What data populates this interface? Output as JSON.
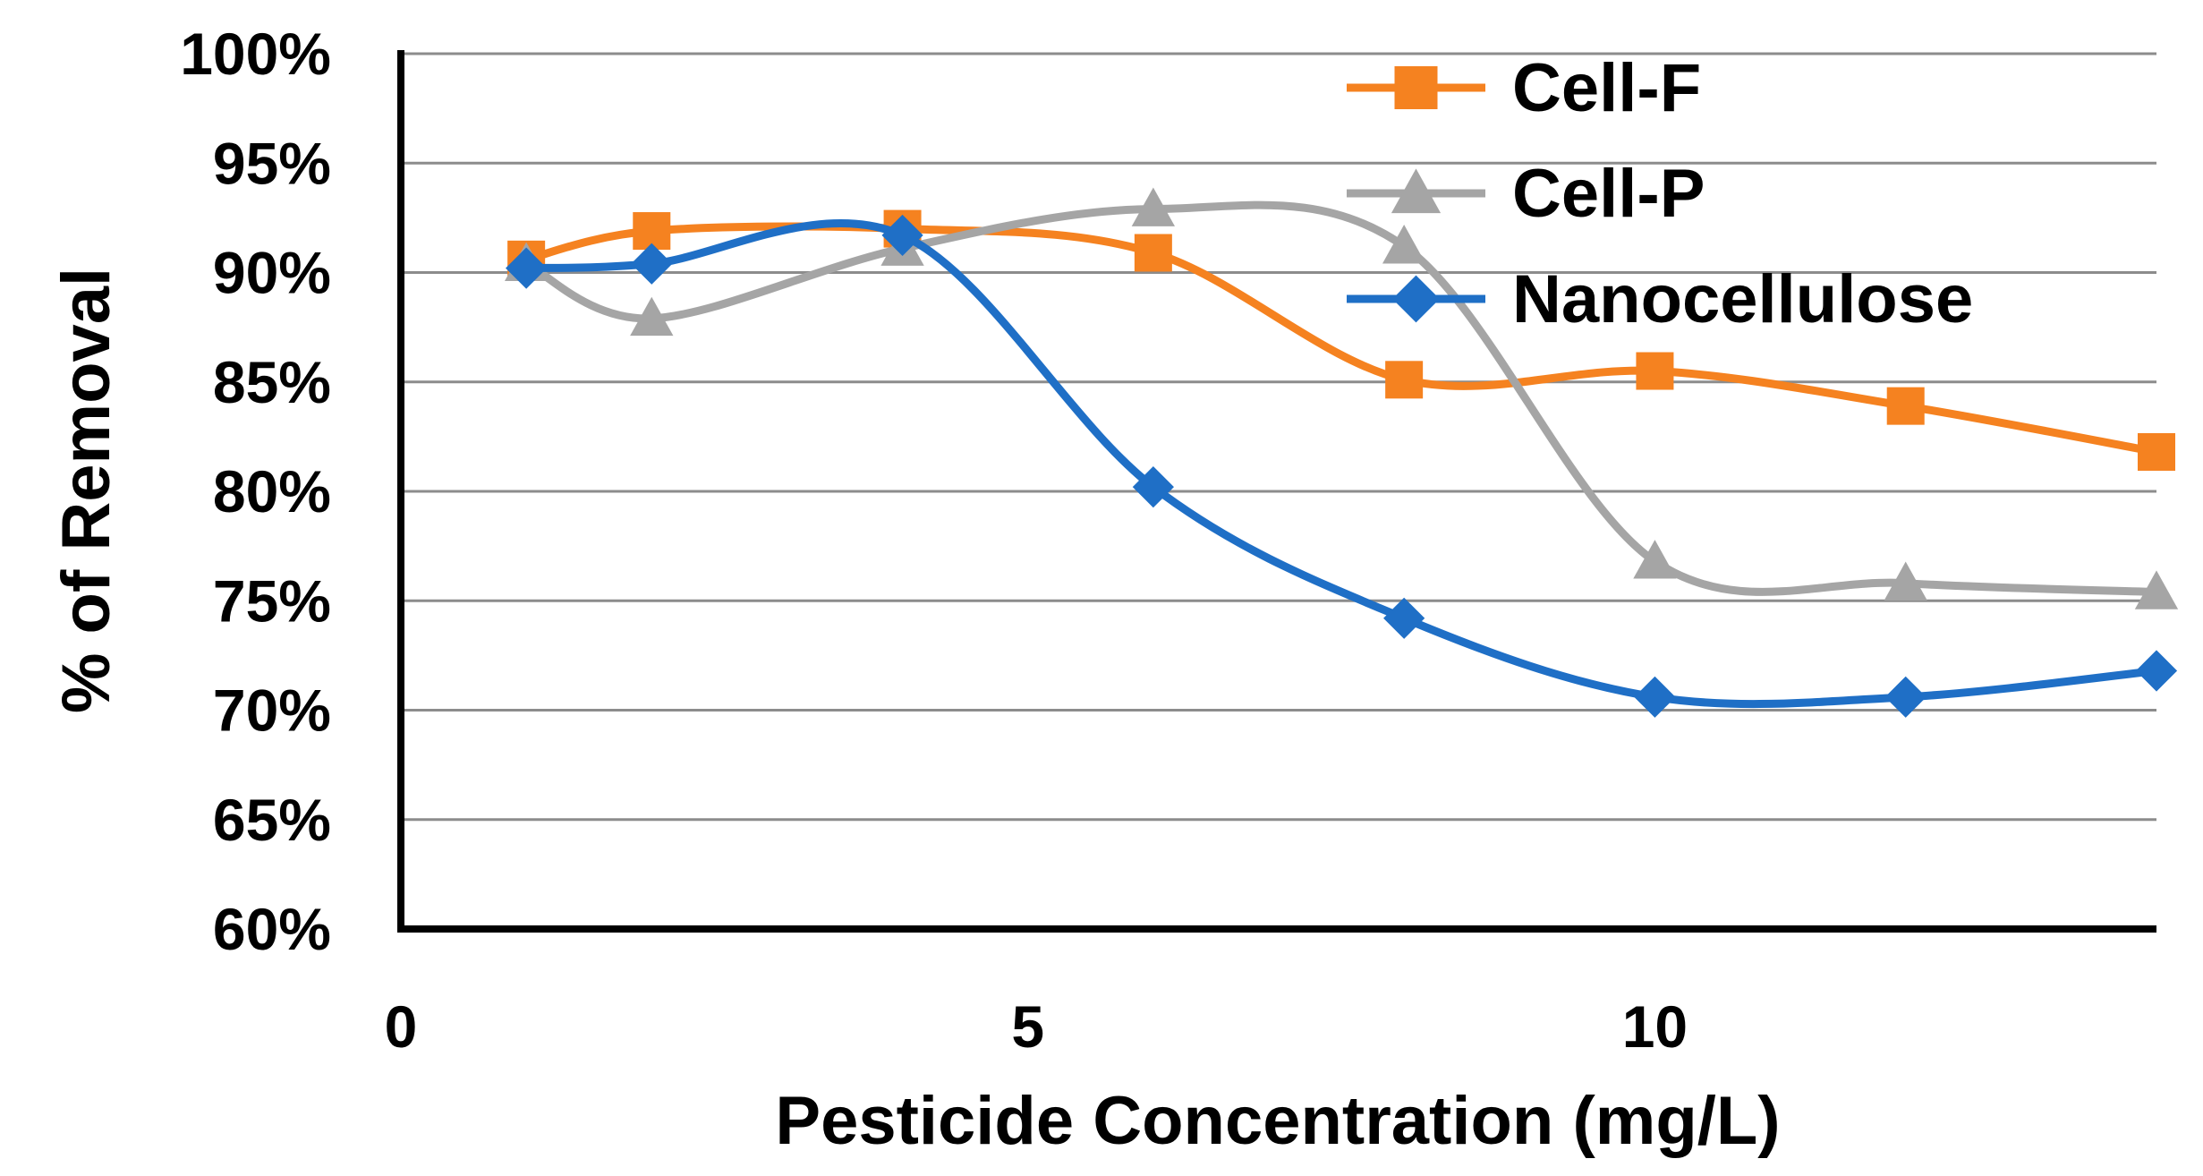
{
  "chart_data": {
    "type": "line",
    "title": "",
    "xlabel": "Pesticide Concentration (mg/L)",
    "ylabel": "% of Removal",
    "xlim": [
      0,
      14
    ],
    "ylim": [
      60,
      100
    ],
    "x_ticks": [
      {
        "value": 0,
        "label": "0"
      },
      {
        "value": 5,
        "label": "5"
      },
      {
        "value": 10,
        "label": "10"
      }
    ],
    "y_ticks": [
      {
        "value": 60,
        "label": "60%"
      },
      {
        "value": 65,
        "label": "65%"
      },
      {
        "value": 70,
        "label": "70%"
      },
      {
        "value": 75,
        "label": "75%"
      },
      {
        "value": 80,
        "label": "80%"
      },
      {
        "value": 85,
        "label": "85%"
      },
      {
        "value": 90,
        "label": "90%"
      },
      {
        "value": 95,
        "label": "95%"
      },
      {
        "value": 100,
        "label": "100%"
      }
    ],
    "grid": "horizontal",
    "smooth": true,
    "legend_position": "top-right",
    "x": [
      1,
      2,
      4,
      6,
      8,
      10,
      12,
      14
    ],
    "series": [
      {
        "name": "Cell-F",
        "color": "#F58220",
        "marker": "square",
        "values": [
          90.6,
          91.9,
          92.0,
          90.9,
          85.1,
          85.5,
          83.9,
          81.8
        ]
      },
      {
        "name": "Cell-P",
        "color": "#A5A5A5",
        "marker": "triangle",
        "values": [
          90.4,
          87.9,
          91.1,
          92.9,
          91.2,
          76.8,
          75.8,
          75.4
        ]
      },
      {
        "name": "Nanocellulose",
        "color": "#1F6FC6",
        "marker": "diamond",
        "values": [
          90.2,
          90.4,
          91.7,
          80.2,
          74.2,
          70.6,
          70.6,
          71.8
        ]
      }
    ]
  }
}
